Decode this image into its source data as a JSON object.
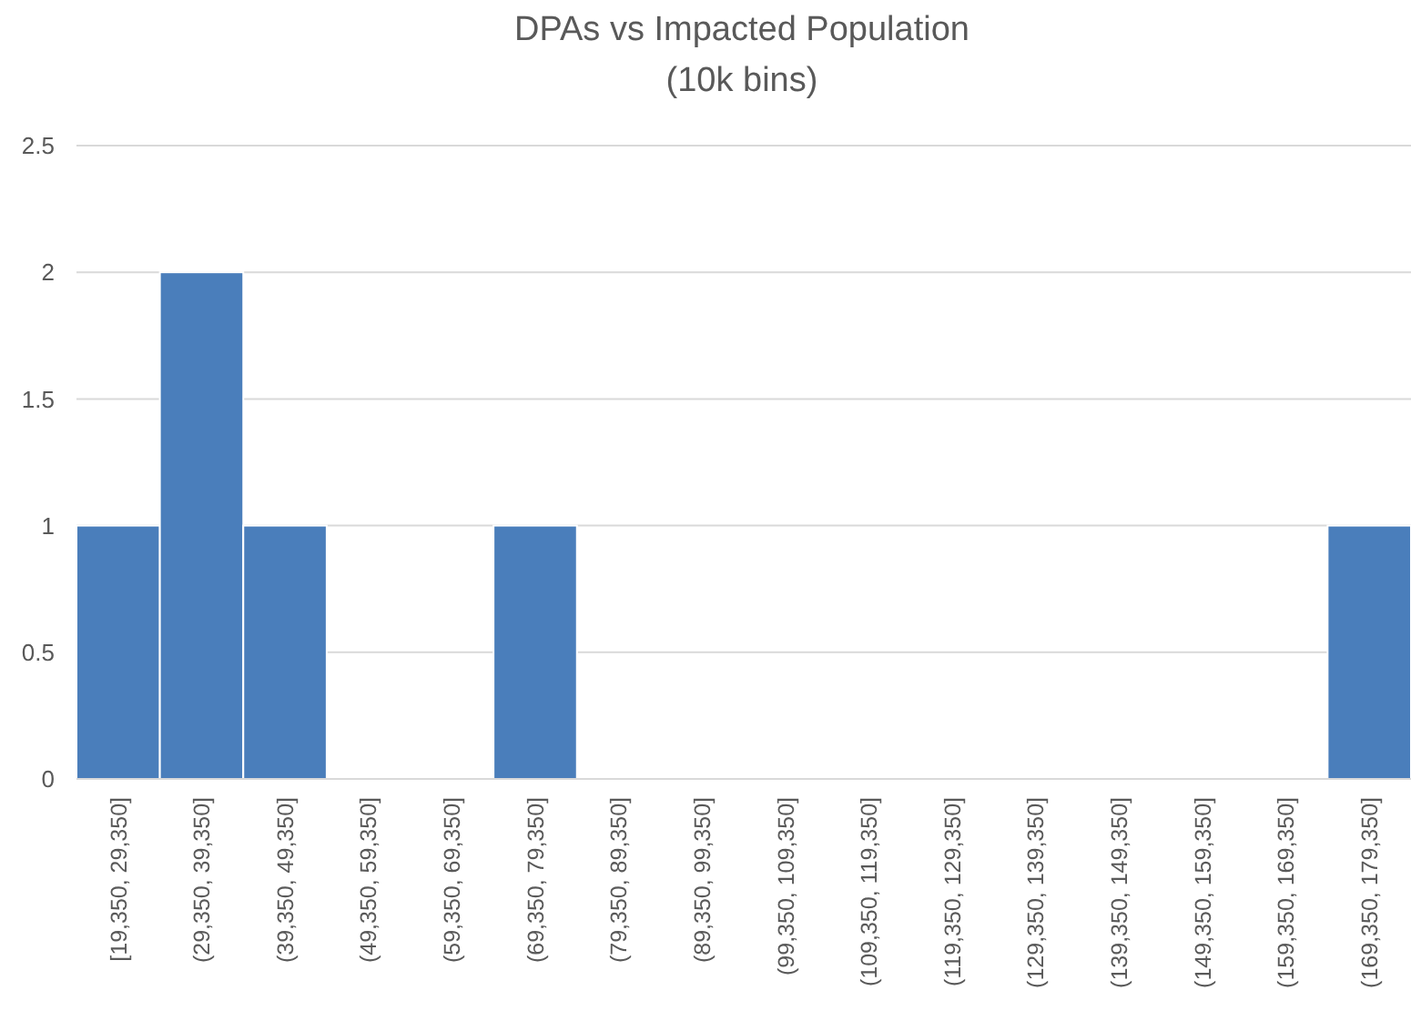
{
  "chart_data": {
    "type": "bar",
    "title": "DPAs vs Impacted Population",
    "subtitle": "(10k bins)",
    "categories": [
      "[19,350, 29,350]",
      "(29,350, 39,350]",
      "(39,350, 49,350]",
      "(49,350, 59,350]",
      "(59,350, 69,350]",
      "(69,350, 79,350]",
      "(79,350, 89,350]",
      "(89,350, 99,350]",
      "(99,350, 109,350]",
      "(109,350, 119,350]",
      "(119,350, 129,350]",
      "(129,350, 139,350]",
      "(139,350, 149,350]",
      "(149,350, 159,350]",
      "(159,350, 169,350]",
      "(169,350, 179,350]"
    ],
    "values": [
      1,
      2,
      1,
      0,
      0,
      1,
      0,
      0,
      0,
      0,
      0,
      0,
      0,
      0,
      0,
      1
    ],
    "color": "#4a7ebb",
    "ylim": [
      0,
      2.5
    ],
    "yticks": [
      0,
      0.5,
      1,
      1.5,
      2,
      2.5
    ],
    "grid": "y"
  }
}
